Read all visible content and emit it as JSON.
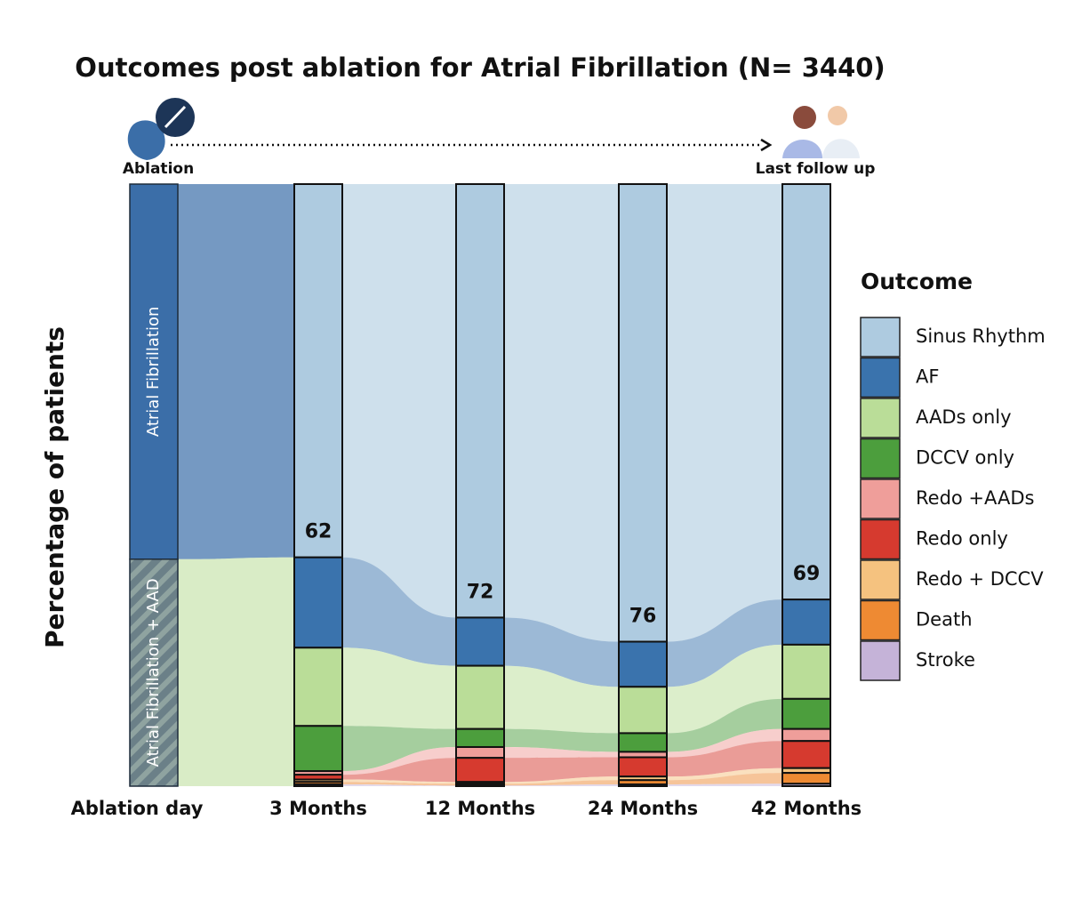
{
  "chart_data": {
    "type": "alluvial",
    "title": "Outcomes post ablation for Atrial Fibrillation (N= 3440)",
    "y_label": "Percentage of patients",
    "start_caption": "Ablation",
    "end_caption": "Last follow up",
    "legend_title": "Outcome",
    "start": {
      "name": "Ablation day",
      "categories": [
        "Atrial Fibrillation",
        "Atrial Fibrillation + AAD"
      ],
      "values": [
        62.3,
        37.7
      ],
      "colors": [
        "#3b6ea8",
        "#6b8088"
      ]
    },
    "categories": [
      "3 Months",
      "12 Months",
      "24 Months",
      "42 Months"
    ],
    "ylim": [
      0,
      100
    ],
    "series": [
      {
        "name": "Sinus Rhythm",
        "color": "#aecbe0",
        "values": [
          62,
          72,
          76,
          69
        ],
        "show_values": true
      },
      {
        "name": "AF",
        "color": "#3a73ad",
        "values": [
          15,
          8,
          7.5,
          7.5
        ]
      },
      {
        "name": "AADs only",
        "color": "#badd98",
        "values": [
          13,
          10.5,
          7.7,
          9
        ]
      },
      {
        "name": "DCCV only",
        "color": "#4c9e3d",
        "values": [
          7.5,
          3,
          3.1,
          5
        ]
      },
      {
        "name": "Redo +AADs",
        "color": "#ef9e9a",
        "values": [
          0.6,
          1.8,
          0.9,
          2
        ]
      },
      {
        "name": "Redo only",
        "color": "#d63a2f",
        "values": [
          0.8,
          4,
          3.2,
          4.5
        ]
      },
      {
        "name": "Redo + DCCV",
        "color": "#f5c27f",
        "values": [
          0.4,
          0.3,
          0.6,
          0.8
        ]
      },
      {
        "name": "Death",
        "color": "#ee8a33",
        "values": [
          0.4,
          0.3,
          0.7,
          1.8
        ]
      },
      {
        "name": "Stroke",
        "color": "#c5b3d8",
        "values": [
          0.3,
          0.1,
          0.3,
          0.4
        ]
      }
    ]
  }
}
